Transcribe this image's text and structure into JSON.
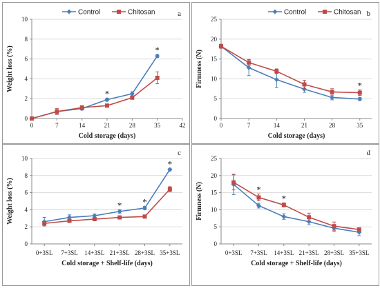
{
  "colors": {
    "control": "#4a7ebb",
    "chitosan": "#be4b48",
    "grid": "#d9d9d9",
    "axis": "#888888"
  },
  "chart_data": [
    {
      "id": "a",
      "type": "line",
      "panel_label": "a",
      "xlabel": "Cold storage (days)",
      "ylabel": "Weight loss (%)",
      "x_ticks": [
        "0",
        "7",
        "14",
        "21",
        "28",
        "35",
        "42"
      ],
      "x_numeric": true,
      "xlim": [
        0,
        42
      ],
      "ylim": [
        0,
        10
      ],
      "y_ticks": [
        0,
        2,
        4,
        6,
        8,
        10
      ],
      "grid": true,
      "legend": "top",
      "series": [
        {
          "name": "Control",
          "x": [
            0,
            7,
            14,
            21,
            28,
            35
          ],
          "values": [
            0,
            0.7,
            1.0,
            1.9,
            2.5,
            6.3
          ],
          "err": [
            0,
            0.2,
            0.15,
            0.15,
            0.2,
            0.15
          ]
        },
        {
          "name": "Chitosan",
          "x": [
            0,
            7,
            14,
            21,
            28,
            35
          ],
          "values": [
            0,
            0.7,
            1.1,
            1.3,
            2.1,
            4.1
          ],
          "err": [
            0,
            0.3,
            0.2,
            0.15,
            0.15,
            0.6
          ]
        }
      ],
      "significance_x": [
        21,
        35
      ]
    },
    {
      "id": "b",
      "type": "line",
      "panel_label": "b",
      "xlabel": "Cold storage (days)",
      "ylabel": "Firmness (N)",
      "x_ticks": [
        "0",
        "7",
        "14",
        "21",
        "28",
        "35"
      ],
      "x_numeric": true,
      "xlim": [
        0,
        38
      ],
      "ylim": [
        0,
        25
      ],
      "y_ticks": [
        0,
        5,
        10,
        15,
        20,
        25
      ],
      "grid": true,
      "legend": "top",
      "series": [
        {
          "name": "Control",
          "x": [
            0,
            7,
            14,
            21,
            28,
            35
          ],
          "values": [
            18.2,
            12.8,
            9.8,
            7.4,
            5.3,
            4.9
          ],
          "err": [
            0.5,
            2.0,
            2.0,
            0.8,
            0.6,
            0.4
          ]
        },
        {
          "name": "Chitosan",
          "x": [
            0,
            7,
            14,
            21,
            28,
            35
          ],
          "values": [
            18.2,
            14.1,
            11.9,
            8.6,
            6.7,
            6.5
          ],
          "err": [
            0.5,
            0.8,
            0.6,
            1.0,
            0.8,
            0.7
          ]
        }
      ],
      "significance_x": [
        35
      ]
    },
    {
      "id": "c",
      "type": "line",
      "panel_label": "c",
      "xlabel": "Cold storage + Shelf-life (days)",
      "ylabel": "Weight loss (%)",
      "x_ticks": [
        "0+3SL",
        "7+3SL",
        "14+3SL",
        "21+3SL",
        "28+3SL",
        "35+3SL"
      ],
      "x_numeric": false,
      "ylim": [
        0,
        10
      ],
      "y_ticks": [
        0,
        2,
        4,
        6,
        8,
        10
      ],
      "grid": true,
      "legend": "none",
      "series": [
        {
          "name": "Control",
          "values": [
            2.6,
            3.1,
            3.3,
            3.8,
            4.2,
            8.7
          ],
          "err": [
            0.5,
            0.3,
            0.2,
            0.2,
            0.2,
            0.15
          ]
        },
        {
          "name": "Chitosan",
          "values": [
            2.4,
            2.7,
            2.9,
            3.1,
            3.2,
            6.4
          ],
          "err": [
            0.2,
            0.15,
            0.15,
            0.1,
            0.1,
            0.3
          ]
        }
      ],
      "significance_x": [
        3,
        4,
        5
      ]
    },
    {
      "id": "d",
      "type": "line",
      "panel_label": "d",
      "xlabel": "Cold storage + Shelf-life (days)",
      "ylabel": "Firmness (N)",
      "x_ticks": [
        "0+3SL",
        "7+3SL",
        "14+3SL",
        "21+3SL",
        "28+3SL",
        "35+3SL"
      ],
      "x_numeric": false,
      "ylim": [
        0,
        25
      ],
      "y_ticks": [
        0,
        5,
        10,
        15,
        20,
        25
      ],
      "grid": true,
      "legend": "none",
      "series": [
        {
          "name": "Control",
          "values": [
            17.4,
            11.2,
            8.0,
            6.5,
            4.6,
            3.4
          ],
          "err": [
            3.0,
            0.7,
            0.8,
            0.9,
            1.0,
            1.0
          ]
        },
        {
          "name": "Chitosan",
          "values": [
            18.0,
            13.6,
            11.4,
            7.8,
            5.2,
            4.2
          ],
          "err": [
            2.2,
            1.0,
            0.6,
            1.2,
            1.2,
            0.5
          ]
        }
      ],
      "significance_x": [
        1,
        2
      ]
    }
  ]
}
